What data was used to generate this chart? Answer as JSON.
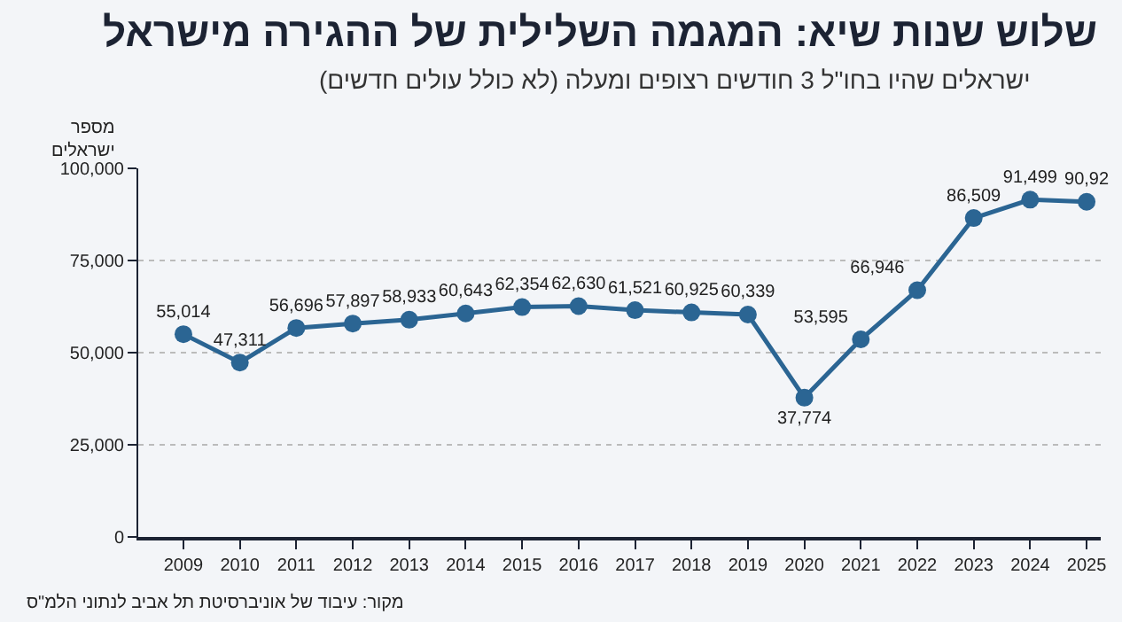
{
  "chart_data": {
    "type": "line",
    "title": "שלוש שנות שיא: המגמה השלילית של ההגירה מישראל",
    "subtitle": "ישראלים שהיו בחו\"ל 3 חודשים רצופים ומעלה (לא כולל עולים חדשים)",
    "ylabel": "מספר\nישראלים",
    "categories": [
      "2009",
      "2010",
      "2011",
      "2012",
      "2013",
      "2014",
      "2015",
      "2016",
      "2017",
      "2018",
      "2019",
      "2020",
      "2021",
      "2022",
      "2023",
      "2024",
      "2025"
    ],
    "series": [
      {
        "color": "#2b6593",
        "values": [
          55014,
          47311,
          56696,
          57897,
          58933,
          60643,
          62354,
          62630,
          61521,
          60925,
          60339,
          37774,
          53595,
          66946,
          86509,
          91499,
          90920
        ]
      }
    ],
    "ylim": [
      0,
      100000
    ],
    "yticks": [
      {
        "value": 0,
        "label": "0"
      },
      {
        "value": 25000,
        "label": "25,000"
      },
      {
        "value": 50000,
        "label": "50,000"
      },
      {
        "value": 75000,
        "label": "75,000"
      },
      {
        "value": 100000,
        "label": "100,000"
      }
    ],
    "value_labels": [
      "55,014",
      "47,311",
      "56,696",
      "57,897",
      "58,933",
      "60,643",
      "62,354",
      "62,630",
      "61,521",
      "60,925",
      "60,339",
      "37,774",
      "53,595",
      "66,946",
      "86,509",
      "91,499",
      "90,92"
    ],
    "grid": "y",
    "marker": "circle",
    "line_style": "solid",
    "legend": false,
    "annotations": [
      "מקור: עיבוד של אוניברסיטת תל אביב לנתוני הלמ\"ס"
    ]
  }
}
